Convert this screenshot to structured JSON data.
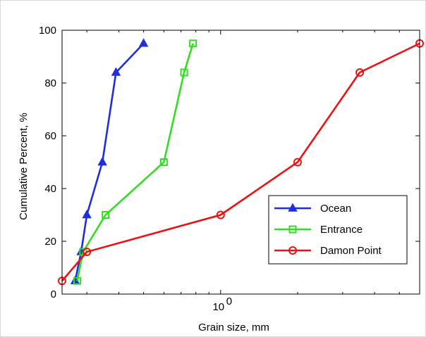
{
  "chart_data": {
    "type": "line",
    "xscale": "log",
    "xlim": [
      0.24,
      6.0
    ],
    "ylim": [
      0,
      100
    ],
    "yticks": [
      0,
      20,
      40,
      60,
      80,
      100
    ],
    "ytick_labels": [
      "0",
      "20",
      "40",
      "60",
      "80",
      "100"
    ],
    "xticks": [
      1
    ],
    "xtick_labels": [
      {
        "base": "10",
        "exp": "0"
      }
    ],
    "xlabel": "Grain size, mm",
    "ylabel": "Cumulative Percent, %",
    "legend": "bottom-right",
    "series": [
      {
        "name": "Ocean",
        "color": "#1f2fe0",
        "marker": "triangle",
        "x": [
          0.27,
          0.285,
          0.3,
          0.345,
          0.39,
          0.5
        ],
        "y": [
          5,
          16,
          30,
          50,
          84,
          95
        ]
      },
      {
        "name": "Entrance",
        "color": "#33dd22",
        "marker": "square",
        "x": [
          0.275,
          0.29,
          0.355,
          0.6,
          0.72,
          0.78
        ],
        "y": [
          5,
          16,
          30,
          50,
          84,
          95
        ]
      },
      {
        "name": "Damon Point",
        "color": "#ee1111",
        "marker": "circle",
        "x": [
          0.24,
          0.3,
          1.0,
          2.0,
          3.5,
          6.0
        ],
        "y": [
          5,
          16,
          30,
          50,
          84,
          95
        ]
      }
    ]
  }
}
